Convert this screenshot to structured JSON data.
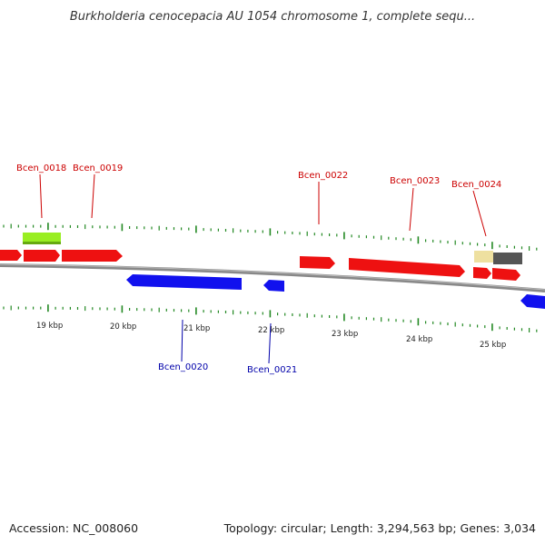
{
  "title": "Burkholderia cenocepacia AU 1054 chromosome 1, complete sequ...",
  "footer": {
    "accession": "Accession: NC_008060",
    "info": "Topology: circular; Length: 3,294,563 bp; Genes: 3,034"
  },
  "colors": {
    "forward_gene": "#ee1111",
    "reverse_gene": "#1111ee",
    "forward_label": "#cc0000",
    "reverse_label": "#0000aa",
    "tick": "#228822",
    "backbone": "#888888",
    "feature_green": "#99ee22",
    "feature_tan": "#eee0a0",
    "feature_gray": "#555555"
  },
  "ruler": {
    "unit": "kbp",
    "labels": [
      "19 kbp",
      "20 kbp",
      "21 kbp",
      "22 kbp",
      "23 kbp",
      "24 kbp",
      "25 kbp"
    ]
  },
  "genes": [
    {
      "id": "Bcen_0018",
      "strand": "forward"
    },
    {
      "id": "Bcen_0019",
      "strand": "forward"
    },
    {
      "id": "Bcen_0020",
      "strand": "reverse"
    },
    {
      "id": "Bcen_0021",
      "strand": "reverse"
    },
    {
      "id": "Bcen_0022",
      "strand": "forward"
    },
    {
      "id": "Bcen_0023",
      "strand": "forward"
    },
    {
      "id": "Bcen_0024",
      "strand": "forward"
    }
  ]
}
